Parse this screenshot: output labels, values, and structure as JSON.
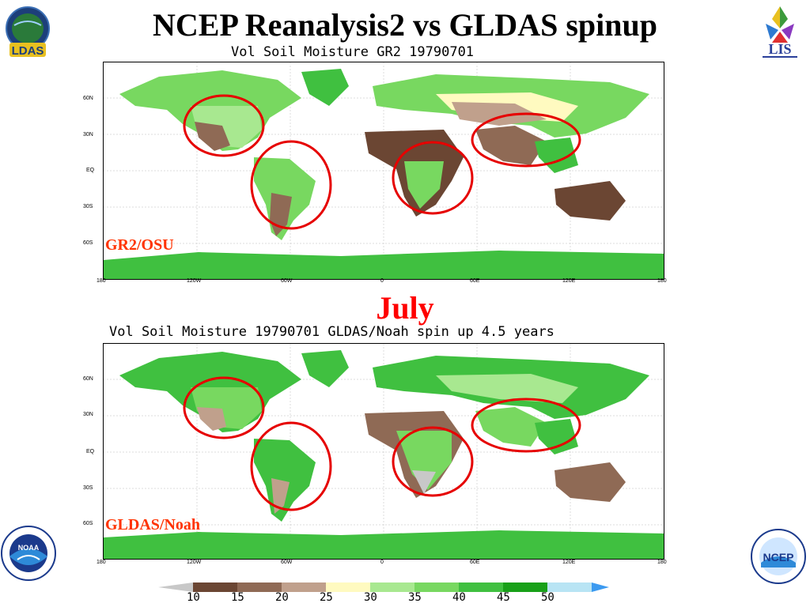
{
  "title": "NCEP Reanalysis2 vs GLDAS spinup",
  "month_label": "July",
  "colors": {
    "ocean": "#ffffff",
    "circle": "#e60000",
    "label": "#ff3300",
    "bins": [
      "#c8c8c8",
      "#6b4633",
      "#8f6a55",
      "#c0a08c",
      "#fffac0",
      "#a8e890",
      "#78d860",
      "#40c040",
      "#18a018",
      "#b8e4f4",
      "#3c9af0"
    ]
  },
  "logos": {
    "ldas": "LDAS",
    "lis": "LIS",
    "noaa": "NOAA",
    "ncep": "NCEP"
  },
  "maps": [
    {
      "title": "Vol Soil Moisture GR2 19790701",
      "label": "GR2/OSU"
    },
    {
      "title": "Vol Soil Moisture 19790701 GLDAS/Noah spin up 4.5 years",
      "label": "GLDAS/Noah"
    }
  ],
  "lat_ticks": [
    "60N",
    "30N",
    "EQ",
    "30S",
    "60S"
  ],
  "lon_ticks": [
    "180",
    "120W",
    "60W",
    "0",
    "60E",
    "120E",
    "180"
  ],
  "colorbar": {
    "labels": [
      "10",
      "15",
      "20",
      "25",
      "30",
      "35",
      "40",
      "45",
      "50"
    ]
  }
}
